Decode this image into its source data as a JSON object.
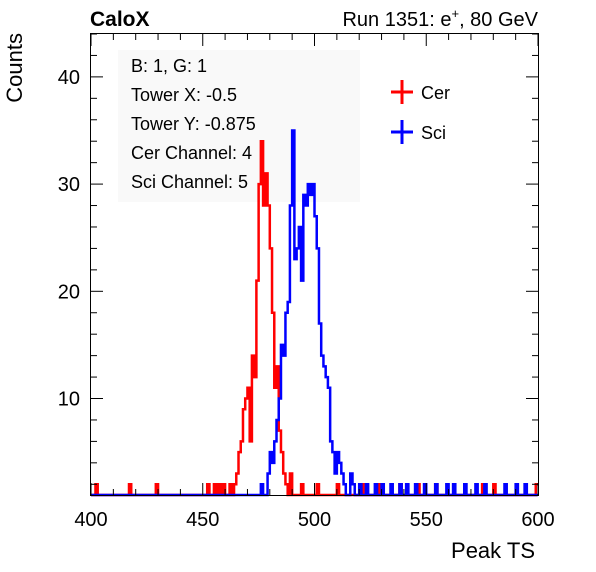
{
  "header": {
    "left_label": "CaloX",
    "right_label_prefix": "Run 1351: e",
    "right_label_sup": "+",
    "right_label_suffix": ", 80 GeV"
  },
  "info_box": {
    "lines": [
      "B: 1, G: 1",
      "Tower X: -0.5",
      "Tower Y: -0.875",
      "Cer Channel: 4",
      "Sci Channel: 5"
    ]
  },
  "legend": {
    "placement": "top-right",
    "entries": [
      {
        "label": "Cer",
        "color": "#ff0000"
      },
      {
        "label": "Sci",
        "color": "#0000ff"
      }
    ]
  },
  "chart_data": {
    "type": "line",
    "style": "step-histogram",
    "title": "",
    "xlabel": "Peak TS",
    "ylabel": "Counts",
    "xlim": [
      400,
      600
    ],
    "ylim": [
      1,
      44
    ],
    "xticks": [
      400,
      450,
      500,
      550,
      600
    ],
    "yticks": [
      10,
      20,
      30,
      40
    ],
    "bin_width": 1,
    "grid": false,
    "series": [
      {
        "name": "Cer",
        "color": "#ff0000",
        "points": [
          [
            402,
            2
          ],
          [
            403,
            1
          ],
          [
            417,
            2
          ],
          [
            418,
            1
          ],
          [
            429,
            2
          ],
          [
            431,
            1
          ],
          [
            452,
            2
          ],
          [
            453,
            1
          ],
          [
            455,
            2
          ],
          [
            456,
            1
          ],
          [
            457,
            2
          ],
          [
            458,
            1
          ],
          [
            459,
            2
          ],
          [
            460,
            1
          ],
          [
            462,
            2
          ],
          [
            463,
            1
          ],
          [
            464,
            2
          ],
          [
            465,
            3
          ],
          [
            466,
            5
          ],
          [
            467,
            6
          ],
          [
            468,
            9
          ],
          [
            469,
            10
          ],
          [
            470,
            11
          ],
          [
            471,
            6
          ],
          [
            472,
            14
          ],
          [
            473,
            12
          ],
          [
            474,
            21
          ],
          [
            475,
            30
          ],
          [
            476,
            34
          ],
          [
            477,
            28
          ],
          [
            478,
            31
          ],
          [
            479,
            28
          ],
          [
            480,
            24
          ],
          [
            481,
            18
          ],
          [
            482,
            11
          ],
          [
            483,
            13
          ],
          [
            484,
            7
          ],
          [
            485,
            5
          ],
          [
            486,
            3
          ],
          [
            487,
            2
          ],
          [
            488,
            1
          ],
          [
            489,
            3
          ],
          [
            490,
            1
          ],
          [
            494,
            2
          ],
          [
            495,
            1
          ],
          [
            501,
            2
          ],
          [
            502,
            1
          ],
          [
            510,
            2
          ],
          [
            511,
            1
          ],
          [
            521,
            2
          ],
          [
            522,
            1
          ],
          [
            528,
            2
          ],
          [
            529,
            1
          ],
          [
            538,
            2
          ],
          [
            539,
            1
          ],
          [
            546,
            2
          ],
          [
            547,
            1
          ],
          [
            554,
            2
          ],
          [
            555,
            1
          ],
          [
            575,
            2
          ],
          [
            577,
            1
          ],
          [
            580,
            2
          ],
          [
            581,
            1
          ],
          [
            599,
            2
          ]
        ]
      },
      {
        "name": "Sci",
        "color": "#0000ff",
        "points": [
          [
            476,
            2
          ],
          [
            477,
            1
          ],
          [
            479,
            3
          ],
          [
            480,
            5
          ],
          [
            481,
            4
          ],
          [
            482,
            6
          ],
          [
            483,
            8
          ],
          [
            484,
            10
          ],
          [
            485,
            15
          ],
          [
            486,
            14
          ],
          [
            487,
            18
          ],
          [
            488,
            19
          ],
          [
            489,
            28
          ],
          [
            490,
            35
          ],
          [
            491,
            23
          ],
          [
            492,
            24
          ],
          [
            493,
            26
          ],
          [
            494,
            21
          ],
          [
            495,
            29
          ],
          [
            496,
            28
          ],
          [
            497,
            30
          ],
          [
            498,
            29
          ],
          [
            499,
            30
          ],
          [
            500,
            27
          ],
          [
            501,
            24
          ],
          [
            502,
            17
          ],
          [
            503,
            14
          ],
          [
            504,
            13
          ],
          [
            505,
            12
          ],
          [
            506,
            11
          ],
          [
            507,
            6
          ],
          [
            508,
            5
          ],
          [
            509,
            3
          ],
          [
            510,
            5
          ],
          [
            511,
            4
          ],
          [
            512,
            3
          ],
          [
            513,
            2
          ],
          [
            514,
            1
          ],
          [
            516,
            3
          ],
          [
            517,
            2
          ],
          [
            518,
            1
          ],
          [
            520,
            2
          ],
          [
            521,
            1
          ],
          [
            523,
            2
          ],
          [
            524,
            1
          ],
          [
            527,
            2
          ],
          [
            528,
            1
          ],
          [
            530,
            2
          ],
          [
            531,
            1
          ],
          [
            534,
            2
          ],
          [
            535,
            1
          ],
          [
            538,
            2
          ],
          [
            539,
            1
          ],
          [
            541,
            2
          ],
          [
            542,
            1
          ],
          [
            545,
            2
          ],
          [
            546,
            1
          ],
          [
            549,
            2
          ],
          [
            550,
            1
          ],
          [
            554,
            2
          ],
          [
            555,
            1
          ],
          [
            559,
            2
          ],
          [
            560,
            1
          ],
          [
            562,
            2
          ],
          [
            563,
            1
          ],
          [
            567,
            2
          ],
          [
            568,
            1
          ],
          [
            572,
            2
          ],
          [
            573,
            1
          ],
          [
            576,
            2
          ],
          [
            577,
            1
          ],
          [
            585,
            2
          ],
          [
            586,
            1
          ],
          [
            590,
            2
          ],
          [
            591,
            1
          ],
          [
            594,
            2
          ],
          [
            595,
            1
          ]
        ]
      }
    ]
  }
}
